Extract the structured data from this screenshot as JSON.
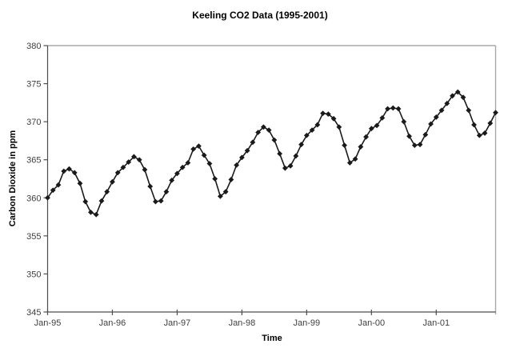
{
  "colors": {
    "background": "#ffffff",
    "series_line": "#1a1a1a",
    "marker_fill": "#1a1a1a",
    "axis_line": "#4d4d4d",
    "plot_border": "#a8a8a8",
    "tick_label": "#404040",
    "title_text": "#000000"
  },
  "chart_data": {
    "type": "line",
    "title": "Keeling CO2 Data (1995-2001)",
    "xlabel": "Time",
    "ylabel": "Carbon Dioxide in ppm",
    "ylim": [
      345,
      380
    ],
    "ytick_step": 5,
    "y_tick_labels": [
      "345",
      "350",
      "355",
      "360",
      "365",
      "370",
      "375",
      "380"
    ],
    "x_tick_labels": [
      "Jan-95",
      "Jan-96",
      "Jan-97",
      "Jan-98",
      "Jan-99",
      "Jan-00",
      "Jan-01"
    ],
    "grid": false,
    "legend": "none",
    "marker": "diamond",
    "categories": [
      "Jan-95",
      "Feb-95",
      "Mar-95",
      "Apr-95",
      "May-95",
      "Jun-95",
      "Jul-95",
      "Aug-95",
      "Sep-95",
      "Oct-95",
      "Nov-95",
      "Dec-95",
      "Jan-96",
      "Feb-96",
      "Mar-96",
      "Apr-96",
      "May-96",
      "Jun-96",
      "Jul-96",
      "Aug-96",
      "Sep-96",
      "Oct-96",
      "Nov-96",
      "Dec-96",
      "Jan-97",
      "Feb-97",
      "Mar-97",
      "Apr-97",
      "May-97",
      "Jun-97",
      "Jul-97",
      "Aug-97",
      "Sep-97",
      "Oct-97",
      "Nov-97",
      "Dec-97",
      "Jan-98",
      "Feb-98",
      "Mar-98",
      "Apr-98",
      "May-98",
      "Jun-98",
      "Jul-98",
      "Aug-98",
      "Sep-98",
      "Oct-98",
      "Nov-98",
      "Dec-98",
      "Jan-99",
      "Feb-99",
      "Mar-99",
      "Apr-99",
      "May-99",
      "Jun-99",
      "Jul-99",
      "Aug-99",
      "Sep-99",
      "Oct-99",
      "Nov-99",
      "Dec-99",
      "Jan-00",
      "Feb-00",
      "Mar-00",
      "Apr-00",
      "May-00",
      "Jun-00",
      "Jul-00",
      "Aug-00",
      "Sep-00",
      "Oct-00",
      "Nov-00",
      "Dec-00",
      "Jan-01",
      "Feb-01",
      "Mar-01",
      "Apr-01",
      "May-01",
      "Jun-01",
      "Jul-01",
      "Aug-01",
      "Sep-01",
      "Oct-01",
      "Nov-01",
      "Dec-01"
    ],
    "series": [
      {
        "name": "Keeling CO2",
        "values": [
          360.0,
          361.0,
          361.7,
          363.5,
          363.8,
          363.3,
          361.9,
          359.5,
          358.1,
          357.8,
          359.6,
          360.8,
          362.1,
          363.3,
          364.0,
          364.7,
          365.4,
          365.0,
          363.7,
          361.5,
          359.5,
          359.6,
          360.8,
          362.3,
          363.2,
          364.0,
          364.6,
          366.4,
          366.8,
          365.6,
          364.5,
          362.5,
          360.2,
          360.8,
          362.4,
          364.3,
          365.3,
          366.2,
          367.3,
          368.6,
          369.3,
          368.9,
          367.6,
          365.8,
          363.9,
          364.2,
          365.5,
          367.0,
          368.2,
          368.9,
          369.6,
          371.1,
          371.0,
          370.4,
          369.3,
          366.9,
          364.6,
          365.1,
          366.7,
          368.0,
          369.1,
          369.5,
          370.5,
          371.7,
          371.8,
          371.7,
          370.0,
          368.1,
          366.9,
          367.0,
          368.3,
          369.7,
          370.6,
          371.5,
          372.4,
          373.4,
          373.9,
          373.2,
          371.5,
          369.6,
          368.2,
          368.5,
          369.8,
          371.2
        ]
      }
    ]
  }
}
